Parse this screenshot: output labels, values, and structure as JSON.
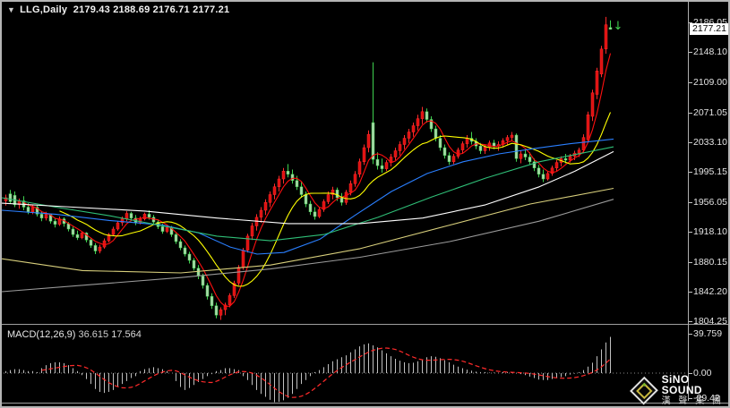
{
  "title_bar": {
    "dropdown_glyph": "▼",
    "symbol_period": "LLG,Daily",
    "open": "2179.43",
    "high": "2188.69",
    "low": "2176.71",
    "close": "2177.21"
  },
  "indicator_label": {
    "name": "MACD(12,26,9)",
    "macd_value": "36.615",
    "signal_value": "17.564"
  },
  "price_axis": {
    "labels": [
      "2186.05",
      "2148.10",
      "2109.00",
      "2071.05",
      "2033.10",
      "1995.15",
      "1956.05",
      "1918.10",
      "1880.15",
      "1842.20",
      "1804.25"
    ],
    "current_price": "2177.21"
  },
  "macd_axis": {
    "labels": [
      "39.759",
      "0.00",
      "-29.42"
    ],
    "values": [
      39.759,
      0,
      -29.42
    ]
  },
  "logo": {
    "brand": "SiNO SOUND",
    "brand_cn": "漢 聲 集 團"
  },
  "arrow_glyph": "↓",
  "colors": {
    "background": "#000000",
    "frame": "#9f9f9f",
    "axis_text": "#e3e3e3",
    "up_body": "#dd1111",
    "up_wick": "#ff2a2a",
    "down_body": "#a8d7a8",
    "down_wick": "#3fd24f",
    "ma_red": "#ff0f0f",
    "ma_yellow": "#ffff00",
    "ma_blue": "#2a7fff",
    "ma_green": "#2fbf77",
    "ma_white": "#ffffff",
    "ma_khaki": "#d8cf7c",
    "ma_gray": "#9a9a9a",
    "histogram": "#c0c0c0",
    "signal": "#ff2a2a",
    "zero_line": "#8a8a8a",
    "arrow": "#3fd24f"
  },
  "chart_data": {
    "type": "candlestick_with_macd",
    "symbol": "LLG",
    "timeframe": "Daily",
    "price_axis_range": {
      "top": 2186.05,
      "bottom": 1804.25
    },
    "macd_axis_range": {
      "max": 39.759,
      "min": -29.42
    },
    "current": {
      "open": 2179.43,
      "high": 2188.69,
      "low": 2176.71,
      "close": 2177.21,
      "macd": 36.615,
      "signal": 17.564
    },
    "candles": [
      [
        1958,
        1966,
        1952,
        1962
      ],
      [
        1967,
        1972,
        1955,
        1957
      ],
      [
        1965,
        1970,
        1950,
        1953
      ],
      [
        1953,
        1961,
        1948,
        1958
      ],
      [
        1958,
        1964,
        1946,
        1950
      ],
      [
        1950,
        1955,
        1941,
        1944
      ],
      [
        1944,
        1953,
        1941,
        1950
      ],
      [
        1950,
        1952,
        1938,
        1941
      ],
      [
        1941,
        1945,
        1932,
        1936
      ],
      [
        1936,
        1944,
        1933,
        1941
      ],
      [
        1941,
        1942,
        1929,
        1932
      ],
      [
        1932,
        1936,
        1924,
        1928
      ],
      [
        1928,
        1938,
        1926,
        1935
      ],
      [
        1935,
        1937,
        1925,
        1929
      ],
      [
        1929,
        1931,
        1919,
        1922
      ],
      [
        1922,
        1925,
        1912,
        1915
      ],
      [
        1915,
        1920,
        1908,
        1911
      ],
      [
        1911,
        1919,
        1909,
        1917
      ],
      [
        1917,
        1918,
        1905,
        1908
      ],
      [
        1908,
        1910,
        1898,
        1901
      ],
      [
        1901,
        1904,
        1890,
        1894
      ],
      [
        1894,
        1902,
        1891,
        1899
      ],
      [
        1899,
        1910,
        1897,
        1907
      ],
      [
        1907,
        1917,
        1905,
        1915
      ],
      [
        1915,
        1925,
        1913,
        1922
      ],
      [
        1922,
        1932,
        1920,
        1930
      ],
      [
        1930,
        1938,
        1926,
        1935
      ],
      [
        1935,
        1945,
        1932,
        1942
      ],
      [
        1942,
        1944,
        1932,
        1936
      ],
      [
        1936,
        1940,
        1927,
        1930
      ],
      [
        1930,
        1938,
        1928,
        1935
      ],
      [
        1935,
        1943,
        1933,
        1941
      ],
      [
        1941,
        1946,
        1934,
        1937
      ],
      [
        1937,
        1940,
        1928,
        1931
      ],
      [
        1931,
        1934,
        1922,
        1925
      ],
      [
        1925,
        1929,
        1916,
        1919
      ],
      [
        1919,
        1927,
        1917,
        1924
      ],
      [
        1924,
        1926,
        1912,
        1915
      ],
      [
        1915,
        1917,
        1903,
        1906
      ],
      [
        1906,
        1909,
        1895,
        1898
      ],
      [
        1898,
        1901,
        1887,
        1890
      ],
      [
        1890,
        1893,
        1878,
        1882
      ],
      [
        1882,
        1885,
        1869,
        1872
      ],
      [
        1872,
        1876,
        1858,
        1862
      ],
      [
        1862,
        1865,
        1846,
        1850
      ],
      [
        1850,
        1853,
        1832,
        1836
      ],
      [
        1836,
        1840,
        1820,
        1824
      ],
      [
        1824,
        1828,
        1808,
        1812
      ],
      [
        1812,
        1822,
        1806,
        1819
      ],
      [
        1819,
        1828,
        1812,
        1825
      ],
      [
        1825,
        1840,
        1822,
        1837
      ],
      [
        1837,
        1856,
        1834,
        1853
      ],
      [
        1853,
        1876,
        1850,
        1873
      ],
      [
        1873,
        1898,
        1870,
        1895
      ],
      [
        1895,
        1916,
        1892,
        1913
      ],
      [
        1913,
        1930,
        1908,
        1926
      ],
      [
        1926,
        1941,
        1920,
        1937
      ],
      [
        1937,
        1950,
        1930,
        1946
      ],
      [
        1946,
        1960,
        1940,
        1956
      ],
      [
        1956,
        1970,
        1950,
        1966
      ],
      [
        1966,
        1980,
        1960,
        1976
      ],
      [
        1976,
        1990,
        1970,
        1986
      ],
      [
        1986,
        2000,
        1980,
        1996
      ],
      [
        1996,
        2005,
        1988,
        1992
      ],
      [
        1992,
        1998,
        1980,
        1984
      ],
      [
        1984,
        1990,
        1972,
        1976
      ],
      [
        1976,
        1982,
        1962,
        1966
      ],
      [
        1966,
        1970,
        1950,
        1954
      ],
      [
        1954,
        1958,
        1940,
        1944
      ],
      [
        1944,
        1950,
        1934,
        1938
      ],
      [
        1938,
        1950,
        1936,
        1947
      ],
      [
        1947,
        1960,
        1944,
        1957
      ],
      [
        1957,
        1970,
        1954,
        1966
      ],
      [
        1966,
        1976,
        1960,
        1972
      ],
      [
        1972,
        1975,
        1958,
        1962
      ],
      [
        1962,
        1968,
        1952,
        1956
      ],
      [
        1956,
        1972,
        1953,
        1969
      ],
      [
        1969,
        1984,
        1965,
        1980
      ],
      [
        1980,
        1996,
        1976,
        1992
      ],
      [
        1992,
        2012,
        1988,
        2008
      ],
      [
        2008,
        2030,
        2004,
        2026
      ],
      [
        2026,
        2048,
        2020,
        2043
      ],
      [
        2058,
        2135,
        2005,
        2011
      ],
      [
        2011,
        2020,
        1998,
        2003
      ],
      [
        2003,
        2012,
        1994,
        1999
      ],
      [
        1999,
        2010,
        1996,
        2007
      ],
      [
        2007,
        2018,
        2002,
        2014
      ],
      [
        2014,
        2026,
        2010,
        2022
      ],
      [
        2022,
        2034,
        2016,
        2030
      ],
      [
        2030,
        2042,
        2024,
        2038
      ],
      [
        2038,
        2050,
        2032,
        2046
      ],
      [
        2046,
        2058,
        2040,
        2054
      ],
      [
        2054,
        2068,
        2048,
        2063
      ],
      [
        2063,
        2078,
        2056,
        2072
      ],
      [
        2072,
        2076,
        2058,
        2062
      ],
      [
        2062,
        2066,
        2046,
        2050
      ],
      [
        2050,
        2054,
        2034,
        2038
      ],
      [
        2038,
        2042,
        2022,
        2026
      ],
      [
        2026,
        2030,
        2012,
        2016
      ],
      [
        2016,
        2020,
        2004,
        2008
      ],
      [
        2008,
        2018,
        2005,
        2015
      ],
      [
        2015,
        2026,
        2012,
        2023
      ],
      [
        2023,
        2034,
        2018,
        2031
      ],
      [
        2031,
        2042,
        2026,
        2038
      ],
      [
        2038,
        2046,
        2030,
        2034
      ],
      [
        2034,
        2038,
        2024,
        2028
      ],
      [
        2028,
        2032,
        2018,
        2022
      ],
      [
        2022,
        2030,
        2018,
        2027
      ],
      [
        2027,
        2035,
        2022,
        2032
      ],
      [
        2032,
        2036,
        2024,
        2028
      ],
      [
        2028,
        2034,
        2022,
        2030
      ],
      [
        2030,
        2038,
        2026,
        2035
      ],
      [
        2035,
        2042,
        2030,
        2039
      ],
      [
        2039,
        2046,
        2034,
        2042
      ],
      [
        2042,
        2044,
        2008,
        2012
      ],
      [
        2012,
        2022,
        2006,
        2018
      ],
      [
        2018,
        2024,
        2010,
        2014
      ],
      [
        2014,
        2020,
        2004,
        2008
      ],
      [
        2008,
        2012,
        1996,
        2000
      ],
      [
        2000,
        2004,
        1988,
        1992
      ],
      [
        1992,
        1998,
        1982,
        1986
      ],
      [
        1986,
        1996,
        1984,
        1993
      ],
      [
        1993,
        2003,
        1990,
        2000
      ],
      [
        2000,
        2010,
        1996,
        2007
      ],
      [
        2007,
        2015,
        2002,
        2012
      ],
      [
        2012,
        2018,
        2006,
        2010
      ],
      [
        2010,
        2018,
        2007,
        2015
      ],
      [
        2015,
        2022,
        2010,
        2019
      ],
      [
        2019,
        2026,
        2014,
        2023
      ],
      [
        2023,
        2043,
        2019,
        2039
      ],
      [
        2036,
        2072,
        2032,
        2068
      ],
      [
        2066,
        2100,
        2060,
        2096
      ],
      [
        2094,
        2128,
        2088,
        2124
      ],
      [
        2120,
        2156,
        2116,
        2152
      ],
      [
        2152,
        2193,
        2146,
        2183
      ],
      [
        2179.43,
        2188.69,
        2176.71,
        2177.21
      ]
    ],
    "moving_averages": [
      {
        "name": "ma-fast-red",
        "type": "sma",
        "period": 5,
        "color_key": "ma_red"
      },
      {
        "name": "ma-mid-yellow",
        "type": "sma",
        "period": 13,
        "color_key": "ma_yellow"
      },
      {
        "name": "ma-blue",
        "type": "points",
        "color_key": "ma_blue",
        "points": [
          [
            0,
            1946
          ],
          [
            60,
            1941
          ],
          [
            120,
            1933
          ],
          [
            180,
            1927
          ],
          [
            220,
            1917
          ],
          [
            255,
            1899
          ],
          [
            285,
            1890
          ],
          [
            315,
            1892
          ],
          [
            355,
            1909
          ],
          [
            395,
            1940
          ],
          [
            435,
            1970
          ],
          [
            475,
            1993
          ],
          [
            515,
            2008
          ],
          [
            555,
            2018
          ],
          [
            595,
            2025
          ],
          [
            635,
            2031
          ],
          [
            683,
            2037
          ]
        ]
      },
      {
        "name": "ma-green",
        "type": "points",
        "color_key": "ma_green",
        "points": [
          [
            0,
            1962
          ],
          [
            60,
            1950
          ],
          [
            120,
            1939
          ],
          [
            180,
            1926
          ],
          [
            240,
            1913
          ],
          [
            300,
            1907
          ],
          [
            360,
            1915
          ],
          [
            420,
            1937
          ],
          [
            480,
            1963
          ],
          [
            540,
            1987
          ],
          [
            600,
            2008
          ],
          [
            683,
            2027
          ]
        ]
      },
      {
        "name": "ma-white",
        "type": "points",
        "color_key": "ma_white",
        "points": [
          [
            0,
            1955
          ],
          [
            80,
            1950
          ],
          [
            160,
            1945
          ],
          [
            240,
            1936
          ],
          [
            320,
            1929
          ],
          [
            400,
            1929
          ],
          [
            470,
            1936
          ],
          [
            540,
            1953
          ],
          [
            600,
            1976
          ],
          [
            640,
            1996
          ],
          [
            683,
            2021
          ]
        ]
      },
      {
        "name": "ma-khaki",
        "type": "points",
        "color_key": "ma_khaki",
        "points": [
          [
            0,
            1884
          ],
          [
            90,
            1869
          ],
          [
            200,
            1866
          ],
          [
            300,
            1876
          ],
          [
            400,
            1897
          ],
          [
            500,
            1927
          ],
          [
            590,
            1954
          ],
          [
            683,
            1974
          ]
        ]
      },
      {
        "name": "ma-gray",
        "type": "points",
        "color_key": "ma_gray",
        "points": [
          [
            0,
            1842
          ],
          [
            100,
            1851
          ],
          [
            200,
            1860
          ],
          [
            300,
            1871
          ],
          [
            400,
            1886
          ],
          [
            500,
            1906
          ],
          [
            600,
            1932
          ],
          [
            683,
            1960
          ]
        ]
      }
    ],
    "macd": {
      "histogram": [
        2,
        3,
        4,
        4,
        3,
        2,
        2,
        1,
        5,
        8,
        10,
        11,
        11,
        10,
        8,
        5,
        2,
        -2,
        -6,
        -11,
        -16,
        -19,
        -20,
        -19,
        -17,
        -14,
        -11,
        -8,
        -5,
        -3,
        2,
        4,
        5,
        6,
        5,
        4,
        2,
        0,
        -8,
        -14,
        -17,
        -15,
        -12,
        -9,
        -6,
        -3,
        -1,
        2,
        3,
        5,
        5,
        4,
        3,
        -3,
        -7,
        -12,
        -17,
        -21,
        -24,
        -27,
        -29.4,
        -29,
        -27.5,
        -25,
        -21,
        -16,
        -11,
        -7,
        -3,
        1,
        3,
        6,
        9,
        12,
        14,
        16,
        18,
        21,
        24,
        27,
        29,
        30,
        28,
        26,
        23,
        20,
        17,
        14.5,
        12.5,
        11,
        10,
        10.5,
        12,
        14,
        16,
        17,
        16.5,
        15,
        13,
        11,
        8.5,
        6.5,
        5,
        3.5,
        2.5,
        1.5,
        1,
        1,
        0.5,
        0.5,
        0.5,
        1,
        1,
        0.5,
        -0.5,
        -1,
        -2,
        -3.5,
        -5,
        -6.5,
        -7,
        -7,
        -6,
        -5,
        -4,
        -3,
        -1.5,
        -0.5,
        1,
        3,
        6.5,
        10.5,
        17,
        24,
        31,
        36.615
      ],
      "signal_period": 9
    }
  }
}
